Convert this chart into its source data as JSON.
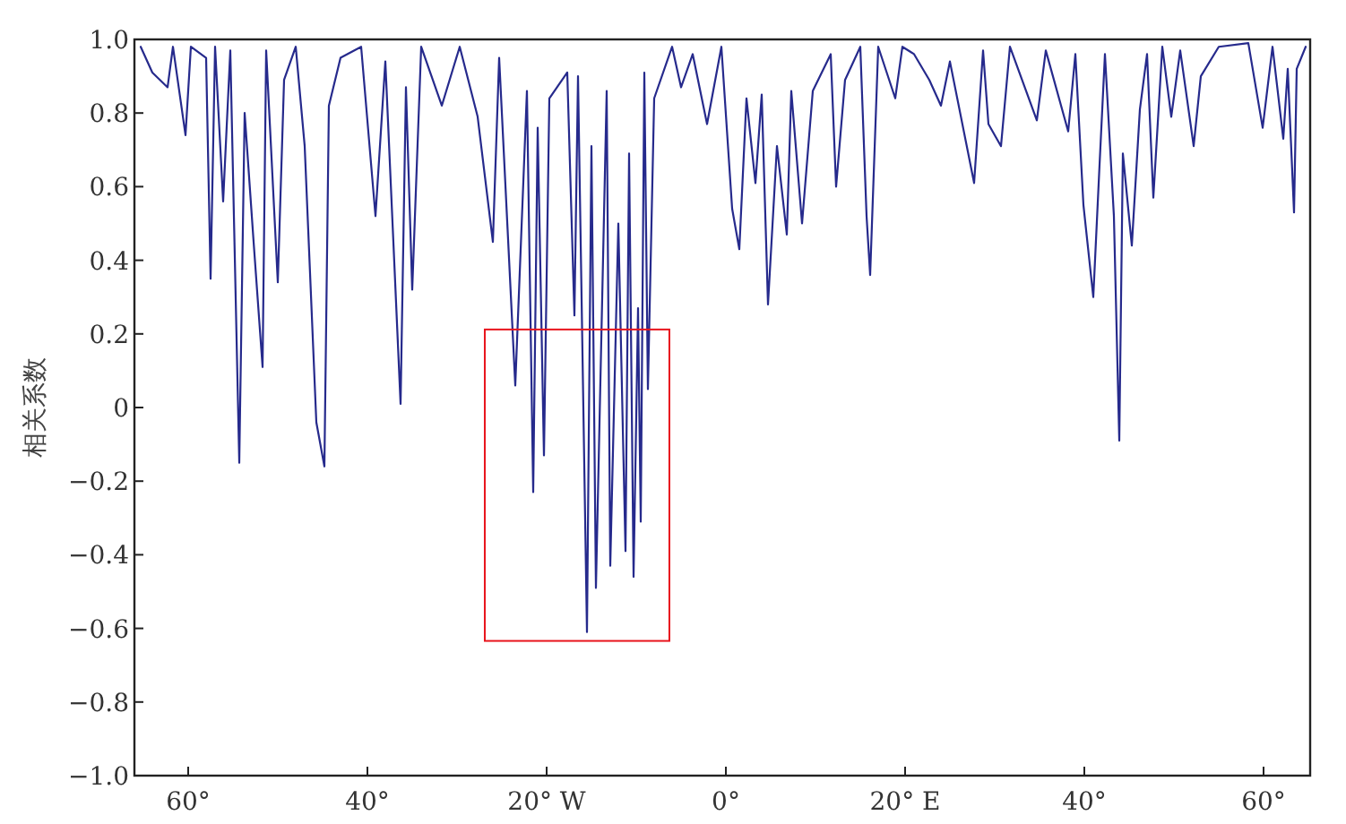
{
  "chart_data": {
    "type": "line",
    "ylabel": "相关系数",
    "x": [
      -65.3,
      -64.0,
      -62.3,
      -61.7,
      -60.3,
      -59.7,
      -58,
      -57.5,
      -57.0,
      -56.1,
      -55.3,
      -54.3,
      -53.7,
      -52.7,
      -51.7,
      -51.3,
      -50,
      -49.3,
      -48,
      -47,
      -45.7,
      -44.8,
      -44.3,
      -43,
      -40.7,
      -39.1,
      -38,
      -36.3,
      -35.7,
      -35,
      -34,
      -31.7,
      -29.7,
      -27.7,
      -26,
      -25.3,
      -23.5,
      -22.2,
      -21.5,
      -21,
      -20.3,
      -19.7,
      -17.7,
      -16.9,
      -16.5,
      -15.5,
      -15,
      -14.5,
      -13.3,
      -12.9,
      -12,
      -11.2,
      -10.8,
      -10.3,
      -9.8,
      -9.5,
      -9.1,
      -8.7,
      -8,
      -6,
      -5,
      -3.7,
      -2.1,
      -0.5,
      0.7,
      1.5,
      2.3,
      3.3,
      4,
      4.7,
      5.7,
      6.8,
      7.3,
      8.5,
      9.7,
      11.7,
      12.3,
      13.3,
      15,
      15.7,
      16.1,
      17,
      18.9,
      19.7,
      21,
      22.7,
      24,
      25,
      27.7,
      28.7,
      29.3,
      30.7,
      31.7,
      34.7,
      35.7,
      38.2,
      39,
      39.9,
      41,
      41.7,
      42.3,
      43.3,
      43.9,
      44.3,
      45.3,
      46.2,
      47,
      47.7,
      48.7,
      49.7,
      50.7,
      52.2,
      53,
      55,
      58.3,
      59.9,
      61,
      62.2,
      62.7,
      63.4,
      63.7,
      64.7
    ],
    "series": [
      {
        "color": "#262a8c",
        "values": [
          0.98,
          0.91,
          0.87,
          0.98,
          0.74,
          0.98,
          0.95,
          0.35,
          0.98,
          0.56,
          0.97,
          -0.15,
          0.8,
          0.45,
          0.11,
          0.97,
          0.34,
          0.89,
          0.98,
          0.71,
          -0.04,
          -0.16,
          0.82,
          0.95,
          0.98,
          0.52,
          0.94,
          0.01,
          0.87,
          0.32,
          0.98,
          0.82,
          0.98,
          0.79,
          0.45,
          0.95,
          0.06,
          0.86,
          -0.23,
          0.76,
          -0.13,
          0.84,
          0.91,
          0.25,
          0.9,
          -0.61,
          0.71,
          -0.49,
          0.86,
          -0.43,
          0.5,
          -0.39,
          0.69,
          -0.46,
          0.27,
          -0.31,
          0.91,
          0.05,
          0.84,
          0.98,
          0.87,
          0.96,
          0.77,
          0.98,
          0.54,
          0.43,
          0.84,
          0.61,
          0.85,
          0.28,
          0.71,
          0.47,
          0.86,
          0.5,
          0.86,
          0.96,
          0.6,
          0.89,
          0.98,
          0.52,
          0.36,
          0.98,
          0.84,
          0.98,
          0.96,
          0.89,
          0.82,
          0.94,
          0.61,
          0.97,
          0.77,
          0.71,
          0.98,
          0.78,
          0.97,
          0.75,
          0.96,
          0.55,
          0.3,
          0.66,
          0.96,
          0.52,
          -0.09,
          0.69,
          0.44,
          0.81,
          0.96,
          0.57,
          0.98,
          0.79,
          0.97,
          0.71,
          0.9,
          0.98,
          0.99,
          0.76,
          0.98,
          0.73,
          0.92,
          0.53,
          0.92,
          0.98
        ]
      }
    ],
    "xlim": [
      -66,
      65.2
    ],
    "xticks": [
      {
        "value": -60,
        "label": "60°"
      },
      {
        "value": -40,
        "label": "40°"
      },
      {
        "value": -20,
        "label": "20° W"
      },
      {
        "value": 0,
        "label": "0°"
      },
      {
        "value": 20,
        "label": "20° E"
      },
      {
        "value": 40,
        "label": "40°"
      },
      {
        "value": 60,
        "label": "60°"
      }
    ],
    "ylim": [
      -1,
      1
    ],
    "yticks": [
      {
        "value": -1,
        "label": "−1.0"
      },
      {
        "value": -0.8,
        "label": "−0.8"
      },
      {
        "value": -0.6,
        "label": "−0.6"
      },
      {
        "value": -0.4,
        "label": "−0.4"
      },
      {
        "value": -0.2,
        "label": "−0.2"
      },
      0,
      0.2,
      0.4,
      0.6,
      0.8,
      {
        "value": 1,
        "label": "1.0"
      }
    ],
    "marker": "none",
    "line_style": "solid",
    "grid": false
  }
}
